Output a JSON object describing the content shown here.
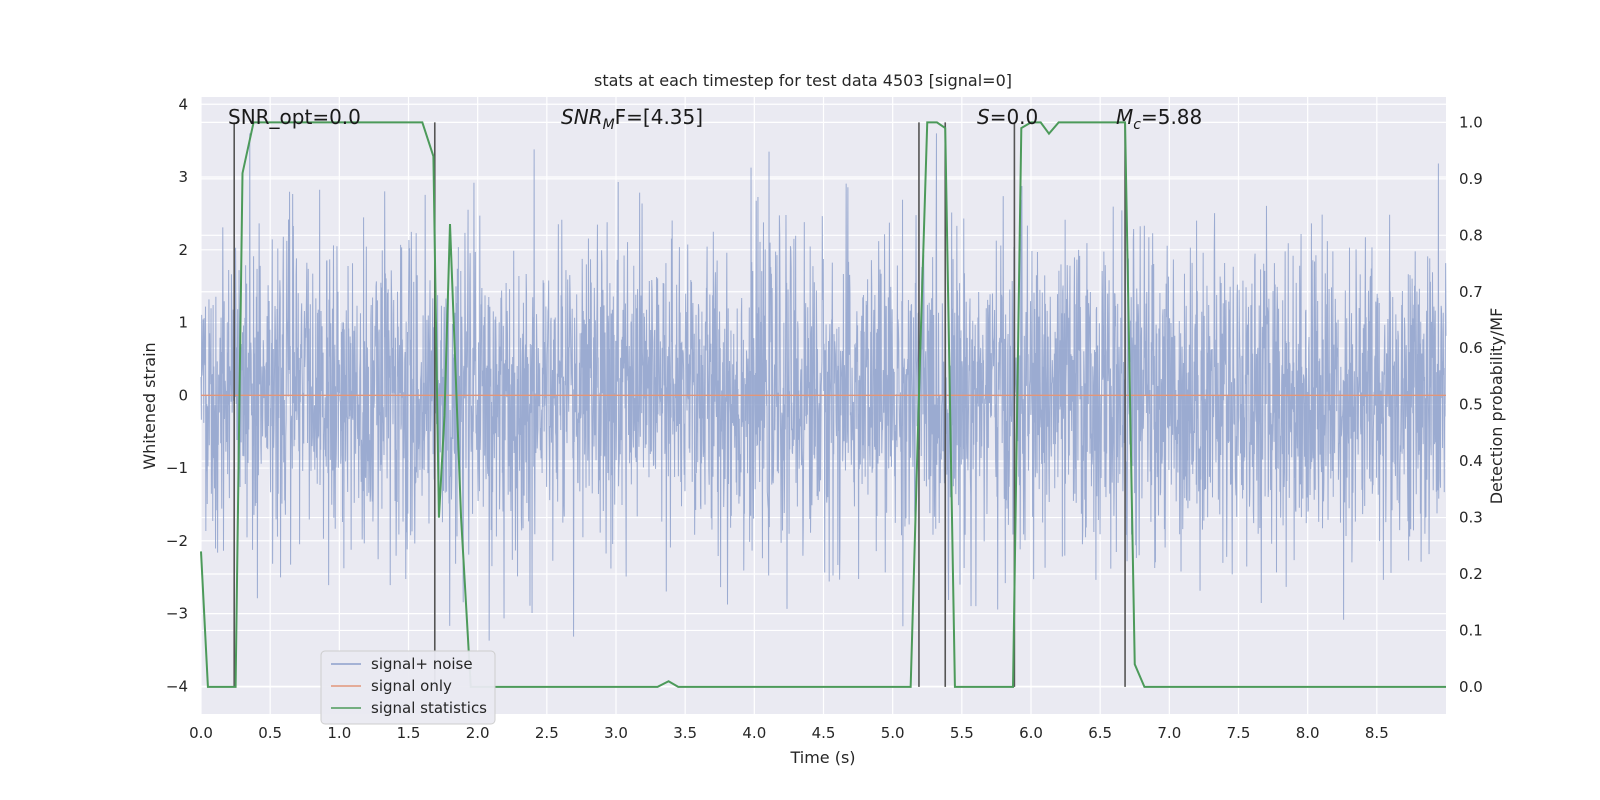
{
  "chart_data": {
    "type": "line",
    "title": "stats at each timestep for test data 4503 [signal=0]",
    "xlabel": "Time (s)",
    "ylabel_left": "Whitened strain",
    "ylabel_right": "Detection probability/MF",
    "xlim": [
      0,
      9.0
    ],
    "ylim_left": [
      -4.38,
      4.1
    ],
    "ylim_right": [
      -0.048,
      1.045
    ],
    "x_ticks": [
      "0.0",
      "0.5",
      "1.0",
      "1.5",
      "2.0",
      "2.5",
      "3.0",
      "3.5",
      "4.0",
      "4.5",
      "5.0",
      "5.5",
      "6.0",
      "6.5",
      "7.0",
      "7.5",
      "8.0",
      "8.5"
    ],
    "y_left_ticks": [
      "−4",
      "−3",
      "−2",
      "−1",
      "0",
      "1",
      "2",
      "3",
      "4"
    ],
    "y_right_ticks": [
      "0.0",
      "0.1",
      "0.2",
      "0.3",
      "0.4",
      "0.5",
      "0.6",
      "0.7",
      "0.8",
      "0.9",
      "1.0"
    ],
    "grid": true,
    "legend_position": "lower-left",
    "annotations": {
      "snr_opt": "SNR_opt=0.0",
      "snr_mf_label": "SNR",
      "snr_mf_sub": "M",
      "snr_mf_suffix": "F=[4.35]",
      "s_label": "S",
      "s_suffix": "=0.0",
      "mc_label": "M",
      "mc_sub": "c",
      "mc_suffix": "=5.88"
    },
    "series": [
      {
        "name": "signal+ noise",
        "color": "#8da0cb",
        "axis": "left",
        "description_values": "dense noise, envelope approx ±1.5 with spikes to ±3.6",
        "noise_seed": 4503,
        "noise_range": [
          -3.6,
          3.6
        ]
      },
      {
        "name": "signal only",
        "color": "#e1967a",
        "axis": "left",
        "x": [
          0,
          9.0
        ],
        "y": [
          0,
          0
        ]
      },
      {
        "name": "signal statistics",
        "color": "#4c9a5a",
        "axis": "right",
        "x": [
          0.0,
          0.05,
          0.1,
          0.15,
          0.25,
          0.3,
          0.38,
          0.45,
          0.6,
          0.8,
          1.0,
          1.2,
          1.4,
          1.6,
          1.68,
          1.72,
          1.76,
          1.8,
          1.88,
          1.95,
          2.0,
          2.5,
          3.0,
          3.3,
          3.38,
          3.45,
          4.0,
          4.5,
          5.0,
          5.13,
          5.2,
          5.25,
          5.32,
          5.38,
          5.45,
          5.5,
          5.87,
          5.93,
          6.0,
          6.07,
          6.13,
          6.2,
          6.4,
          6.6,
          6.68,
          6.75,
          6.82,
          7.0,
          8.0,
          9.0
        ],
        "y": [
          0.24,
          0.0,
          0.0,
          0.0,
          0.0,
          0.91,
          1.0,
          1.0,
          1.0,
          1.0,
          1.0,
          1.0,
          1.0,
          1.0,
          0.94,
          0.3,
          0.48,
          0.82,
          0.3,
          0.0,
          0.0,
          0.0,
          0.0,
          0.0,
          0.01,
          0.0,
          0.0,
          0.0,
          0.0,
          0.0,
          0.6,
          1.0,
          1.0,
          0.99,
          0.0,
          0.0,
          0.0,
          0.99,
          1.0,
          1.0,
          0.98,
          1.0,
          1.0,
          1.0,
          1.0,
          0.04,
          0.0,
          0.0,
          0.0,
          0.0
        ]
      }
    ],
    "vertical_markers": {
      "color": "#555555",
      "x": [
        0.24,
        1.69,
        5.19,
        5.38,
        5.88,
        6.68
      ],
      "y_right": [
        [
          0,
          1.0
        ],
        [
          0,
          1.0
        ],
        [
          0,
          1.0
        ],
        [
          0,
          1.0
        ],
        [
          0,
          1.0
        ],
        [
          0,
          1.0
        ]
      ]
    }
  }
}
